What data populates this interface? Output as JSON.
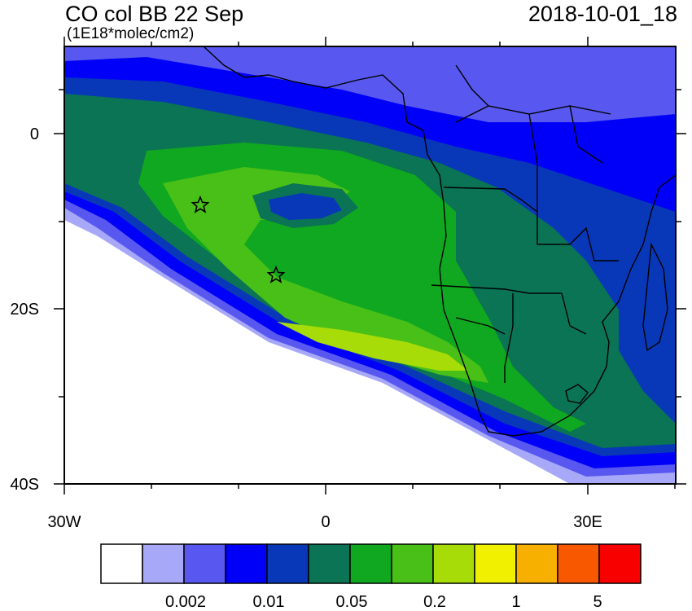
{
  "header": {
    "title": "CO col BB 22 Sep",
    "timestamp": "2018-10-01_18",
    "units": "(1E18*molec/cm2)"
  },
  "axes": {
    "lat_labels": [
      "0",
      "20S",
      "40S"
    ],
    "lon_labels": [
      "30W",
      "0",
      "30E"
    ]
  },
  "colorbar": {
    "colors": [
      "#ffffff",
      "#a8a8f8",
      "#5858f0",
      "#0000f8",
      "#0838b8",
      "#0a7454",
      "#10a820",
      "#48c018",
      "#a8dc08",
      "#f0f000",
      "#f8b000",
      "#f85800",
      "#f80000"
    ],
    "labels": [
      "0.002",
      "0.01",
      "0.05",
      "0.2",
      "1",
      "5"
    ]
  },
  "markers": {
    "count": 2,
    "symbol": "star"
  }
}
